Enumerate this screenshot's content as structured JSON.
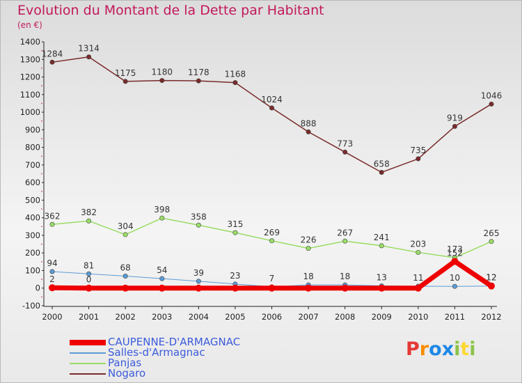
{
  "title": "Evolution du Montant de la Dette par Habitant",
  "subtitle": "(en €)",
  "brand": {
    "letters": [
      {
        "ch": "P",
        "color": "#e53935"
      },
      {
        "ch": "r",
        "color": "#fb8c00"
      },
      {
        "ch": "o",
        "color": "#1e88e5"
      },
      {
        "ch": "x",
        "color": "#1e88e5"
      },
      {
        "ch": "i",
        "color": "#8bc34a"
      },
      {
        "ch": "t",
        "color": "#fdd835"
      },
      {
        "ch": "i",
        "color": "#8bc34a"
      }
    ]
  },
  "chart_data": {
    "type": "line",
    "x": [
      "2000",
      "2001",
      "2002",
      "2003",
      "2004",
      "2005",
      "2006",
      "2007",
      "2008",
      "2009",
      "2010",
      "2011",
      "2012"
    ],
    "ylim": [
      -100,
      1400
    ],
    "yticks": [
      -100,
      0,
      100,
      200,
      300,
      400,
      500,
      600,
      700,
      800,
      900,
      1000,
      1100,
      1200,
      1300,
      1400
    ],
    "grid": false,
    "legend_position": "bottom-left",
    "series": [
      {
        "name": "CAUPENNE-D'ARMAGNAC",
        "color": "#ee0000",
        "width": 7,
        "values": [
          2,
          0,
          0,
          0,
          0,
          0,
          0,
          0,
          0,
          0,
          0,
          152,
          12
        ],
        "labels": [
          "2",
          "0",
          "",
          "",
          "",
          "",
          "",
          "",
          "",
          "",
          "",
          "152",
          "12"
        ]
      },
      {
        "name": "Salles-d'Armagnac",
        "color": "#5b9bd5",
        "width": 1,
        "values": [
          94,
          81,
          68,
          54,
          39,
          23,
          7,
          18,
          18,
          13,
          11,
          10,
          12
        ],
        "labels": [
          "94",
          "81",
          "68",
          "54",
          "39",
          "23",
          "7",
          "18",
          "18",
          "13",
          "11",
          "10",
          "12"
        ]
      },
      {
        "name": "Panjas",
        "color": "#99dd66",
        "width": 1.5,
        "values": [
          362,
          382,
          304,
          398,
          358,
          315,
          269,
          226,
          267,
          241,
          203,
          173,
          265
        ],
        "labels": [
          "362",
          "382",
          "304",
          "398",
          "358",
          "315",
          "269",
          "226",
          "267",
          "241",
          "203",
          "173",
          "265"
        ]
      },
      {
        "name": "Nogaro",
        "color": "#7a2a2a",
        "width": 1.5,
        "values": [
          1284,
          1314,
          1175,
          1180,
          1178,
          1168,
          1024,
          888,
          773,
          658,
          735,
          919,
          1046
        ],
        "labels": [
          "1284",
          "1314",
          "1175",
          "1180",
          "1178",
          "1168",
          "1024",
          "888",
          "773",
          "658",
          "735",
          "919",
          "1046"
        ]
      }
    ]
  }
}
